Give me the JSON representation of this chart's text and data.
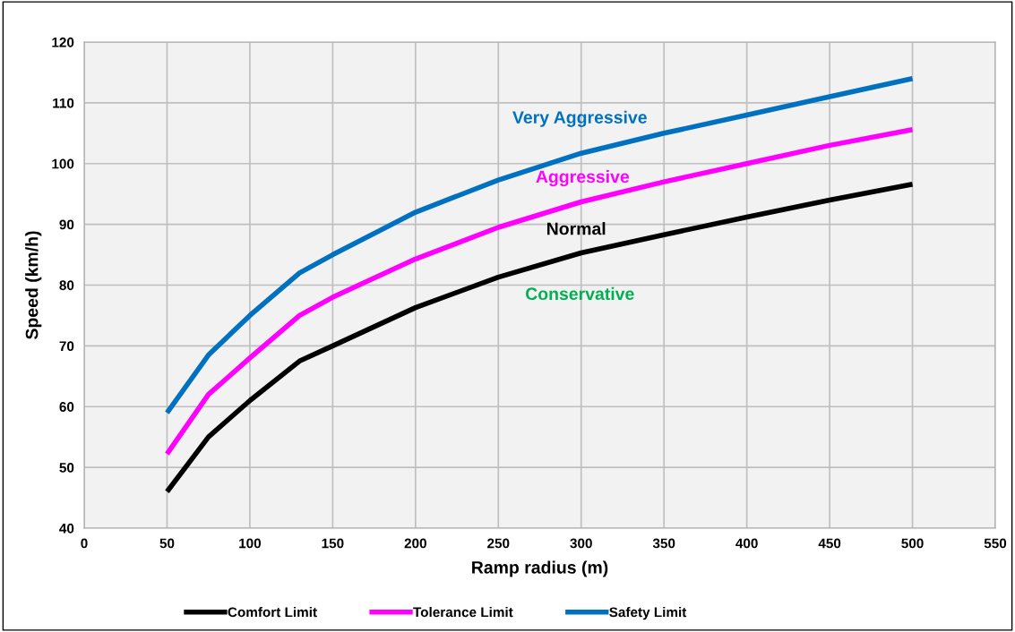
{
  "chart_data": {
    "type": "line",
    "xlabel": "Ramp radius (m)",
    "ylabel": "Speed (km/h)",
    "xlim": [
      0,
      550
    ],
    "xticks": [
      0,
      50,
      100,
      150,
      200,
      250,
      300,
      350,
      400,
      450,
      500,
      550
    ],
    "ylim": [
      40,
      120
    ],
    "yticks": [
      40,
      50,
      60,
      70,
      80,
      90,
      100,
      110,
      120
    ],
    "grid": true,
    "legend": "bottom",
    "marker": "none",
    "line_style": "solid",
    "series": [
      {
        "name": "Comfort Limit",
        "color": "#000000",
        "x": [
          50,
          75,
          100,
          130,
          150,
          200,
          250,
          300,
          350,
          400,
          450,
          500
        ],
        "values": [
          46,
          55,
          61,
          67.5,
          70,
          76.3,
          81.3,
          85.3,
          88.3,
          91.2,
          94,
          96.6
        ]
      },
      {
        "name": "Tolerance Limit",
        "color": "#ff00ff",
        "x": [
          50,
          75,
          100,
          130,
          150,
          200,
          250,
          300,
          350,
          400,
          450,
          500
        ],
        "values": [
          52.2,
          62,
          68,
          75,
          78,
          84.3,
          89.5,
          93.7,
          97,
          100,
          103,
          105.6
        ]
      },
      {
        "name": "Safety Limit",
        "color": "#0070c0",
        "x": [
          50,
          75,
          100,
          130,
          150,
          200,
          250,
          300,
          350,
          400,
          450,
          500
        ],
        "values": [
          59,
          68.5,
          75,
          82,
          85,
          92,
          97.3,
          101.7,
          105,
          108,
          111,
          114
        ]
      }
    ],
    "annotations": [
      "Very Aggressive",
      "Aggressive",
      "Normal",
      "Conservative"
    ]
  }
}
